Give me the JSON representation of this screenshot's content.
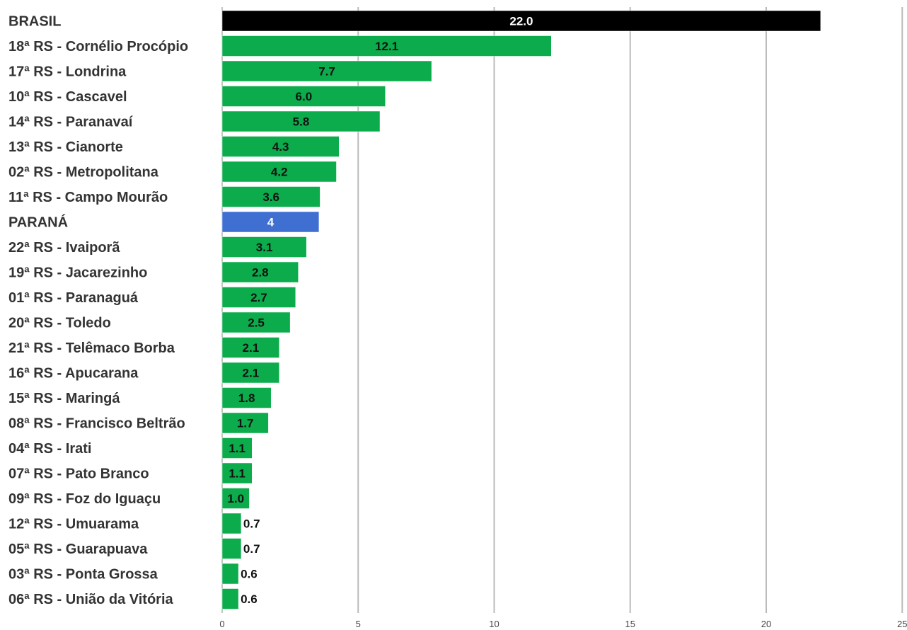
{
  "chart_data": {
    "type": "bar",
    "orientation": "horizontal",
    "title": "",
    "xlabel": "",
    "ylabel": "",
    "xlim": [
      0,
      25
    ],
    "xticks": [
      "0",
      "5",
      "10",
      "15",
      "20",
      "25"
    ],
    "grid": true,
    "legend": "none",
    "categories": [
      "BRASIL",
      "18ª RS - Cornélio Procópio",
      "17ª RS - Londrina",
      "10ª RS - Cascavel",
      "14ª RS - Paranavaí",
      "13ª RS - Cianorte",
      "02ª RS - Metropolitana",
      "11ª RS - Campo Mourão",
      "PARANÁ",
      "22ª RS - Ivaiporã",
      "19ª RS - Jacarezinho",
      "01ª RS - Paranaguá",
      "20ª RS - Toledo",
      "21ª RS - Telêmaco Borba",
      "16ª RS - Apucarana",
      "15ª RS - Maringá",
      "08ª RS - Francisco Beltrão",
      "04ª RS - Irati",
      "07ª RS - Pato Branco",
      "09ª RS - Foz do Iguaçu",
      "12ª RS - Umuarama",
      "05ª RS - Guarapuava",
      "03ª RS - Ponta Grossa",
      "06ª RS - União da Vitória"
    ],
    "values": [
      22.0,
      12.1,
      7.7,
      6.0,
      5.8,
      4.3,
      4.2,
      3.6,
      3.56,
      3.1,
      2.8,
      2.7,
      2.5,
      2.1,
      2.1,
      1.8,
      1.7,
      1.1,
      1.1,
      1.0,
      0.7,
      0.7,
      0.6,
      0.6
    ],
    "value_labels": [
      "22.0",
      "12.1",
      "7.7",
      "6.0",
      "5.8",
      "4.3",
      "4.2",
      "3.6",
      "4",
      "3.1",
      "2.8",
      "2.7",
      "2.5",
      "2.1",
      "2.1",
      "1.8",
      "1.7",
      "1.1",
      "1.1",
      "1.0",
      "0.7",
      "0.7",
      "0.6",
      "0.6"
    ],
    "bar_colors": [
      "#000000",
      "#0cab4c",
      "#0cab4c",
      "#0cab4c",
      "#0cab4c",
      "#0cab4c",
      "#0cab4c",
      "#0cab4c",
      "#3f6fd1",
      "#0cab4c",
      "#0cab4c",
      "#0cab4c",
      "#0cab4c",
      "#0cab4c",
      "#0cab4c",
      "#0cab4c",
      "#0cab4c",
      "#0cab4c",
      "#0cab4c",
      "#0cab4c",
      "#0cab4c",
      "#0cab4c",
      "#0cab4c",
      "#0cab4c"
    ],
    "label_colors": [
      "#ffffff",
      "#111111",
      "#111111",
      "#111111",
      "#111111",
      "#111111",
      "#111111",
      "#111111",
      "#ffffff",
      "#111111",
      "#111111",
      "#111111",
      "#111111",
      "#111111",
      "#111111",
      "#111111",
      "#111111",
      "#111111",
      "#111111",
      "#111111",
      "#111111",
      "#111111",
      "#111111",
      "#111111"
    ],
    "colors": {
      "national": "#000000",
      "state": "#3f6fd1",
      "regional": "#0cab4c",
      "grid": "#bbbbbb"
    }
  }
}
